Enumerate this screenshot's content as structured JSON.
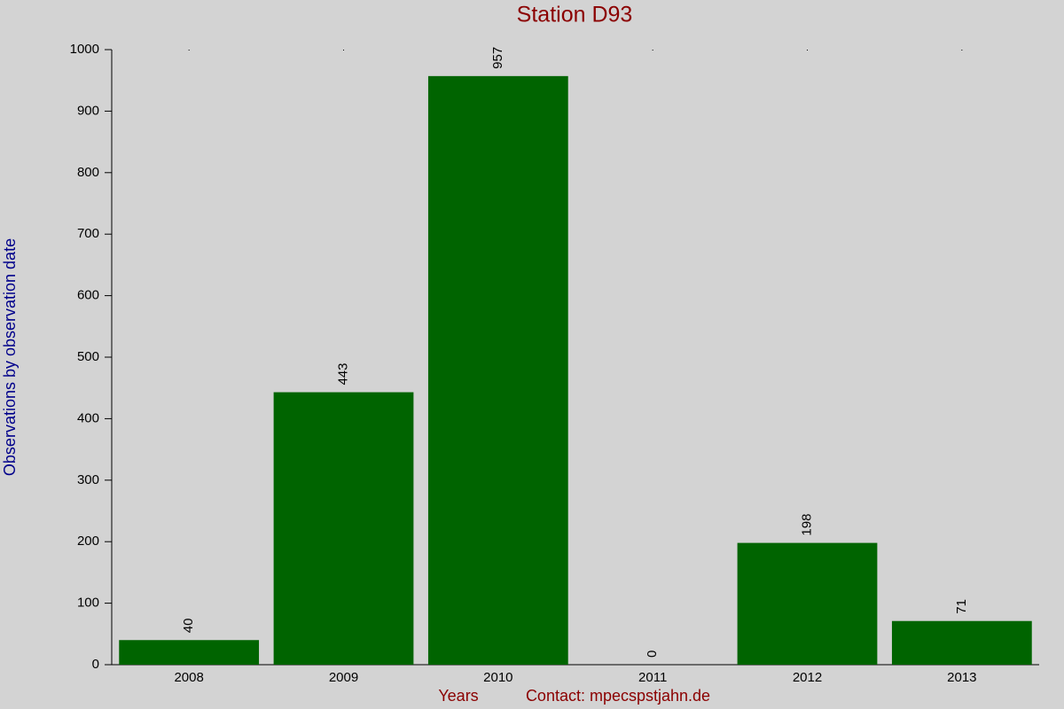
{
  "chart_data": {
    "type": "bar",
    "title": "Station D93",
    "x_label": "Years",
    "y_label": "Observations by observation date",
    "annotation": "Contact: mpecspstjahn.de",
    "categories": [
      "2008",
      "2009",
      "2010",
      "2011",
      "2012",
      "2013"
    ],
    "values": [
      40,
      443,
      957,
      0,
      198,
      71
    ],
    "color": "#006400",
    "ylim": [
      0,
      1000
    ],
    "yticks": [
      0,
      100,
      200,
      300,
      400,
      500,
      600,
      700,
      800,
      900,
      1000
    ]
  }
}
